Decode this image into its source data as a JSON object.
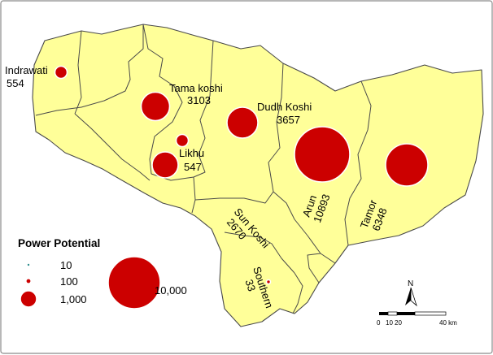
{
  "colors": {
    "region_fill": "#ffff99",
    "bubble_fill": "#cc0000",
    "boundary": "#4a4a4a"
  },
  "basins": [
    {
      "name": "Indrawati",
      "value": "554"
    },
    {
      "name": "Tama koshi",
      "value": "3103"
    },
    {
      "name": "Likhu",
      "value": "547"
    },
    {
      "name": "Dudh Koshi",
      "value": "3657"
    },
    {
      "name": "Arun",
      "value": "10893"
    },
    {
      "name": "Tamor",
      "value": "6348"
    },
    {
      "name": "Sun Koshi",
      "value": "2670"
    },
    {
      "name": "Southern",
      "value": "33"
    }
  ],
  "legend": {
    "title": "Power Potential",
    "items": [
      {
        "label": "10",
        "value": 10
      },
      {
        "label": "100",
        "value": 100
      },
      {
        "label": "1,000",
        "value": 1000
      },
      {
        "label": "10,000",
        "value": 10000
      }
    ]
  },
  "north_arrow": {
    "label": "N"
  },
  "scale_bar": {
    "ticks": [
      "0",
      "10",
      "20",
      "40 km"
    ]
  }
}
